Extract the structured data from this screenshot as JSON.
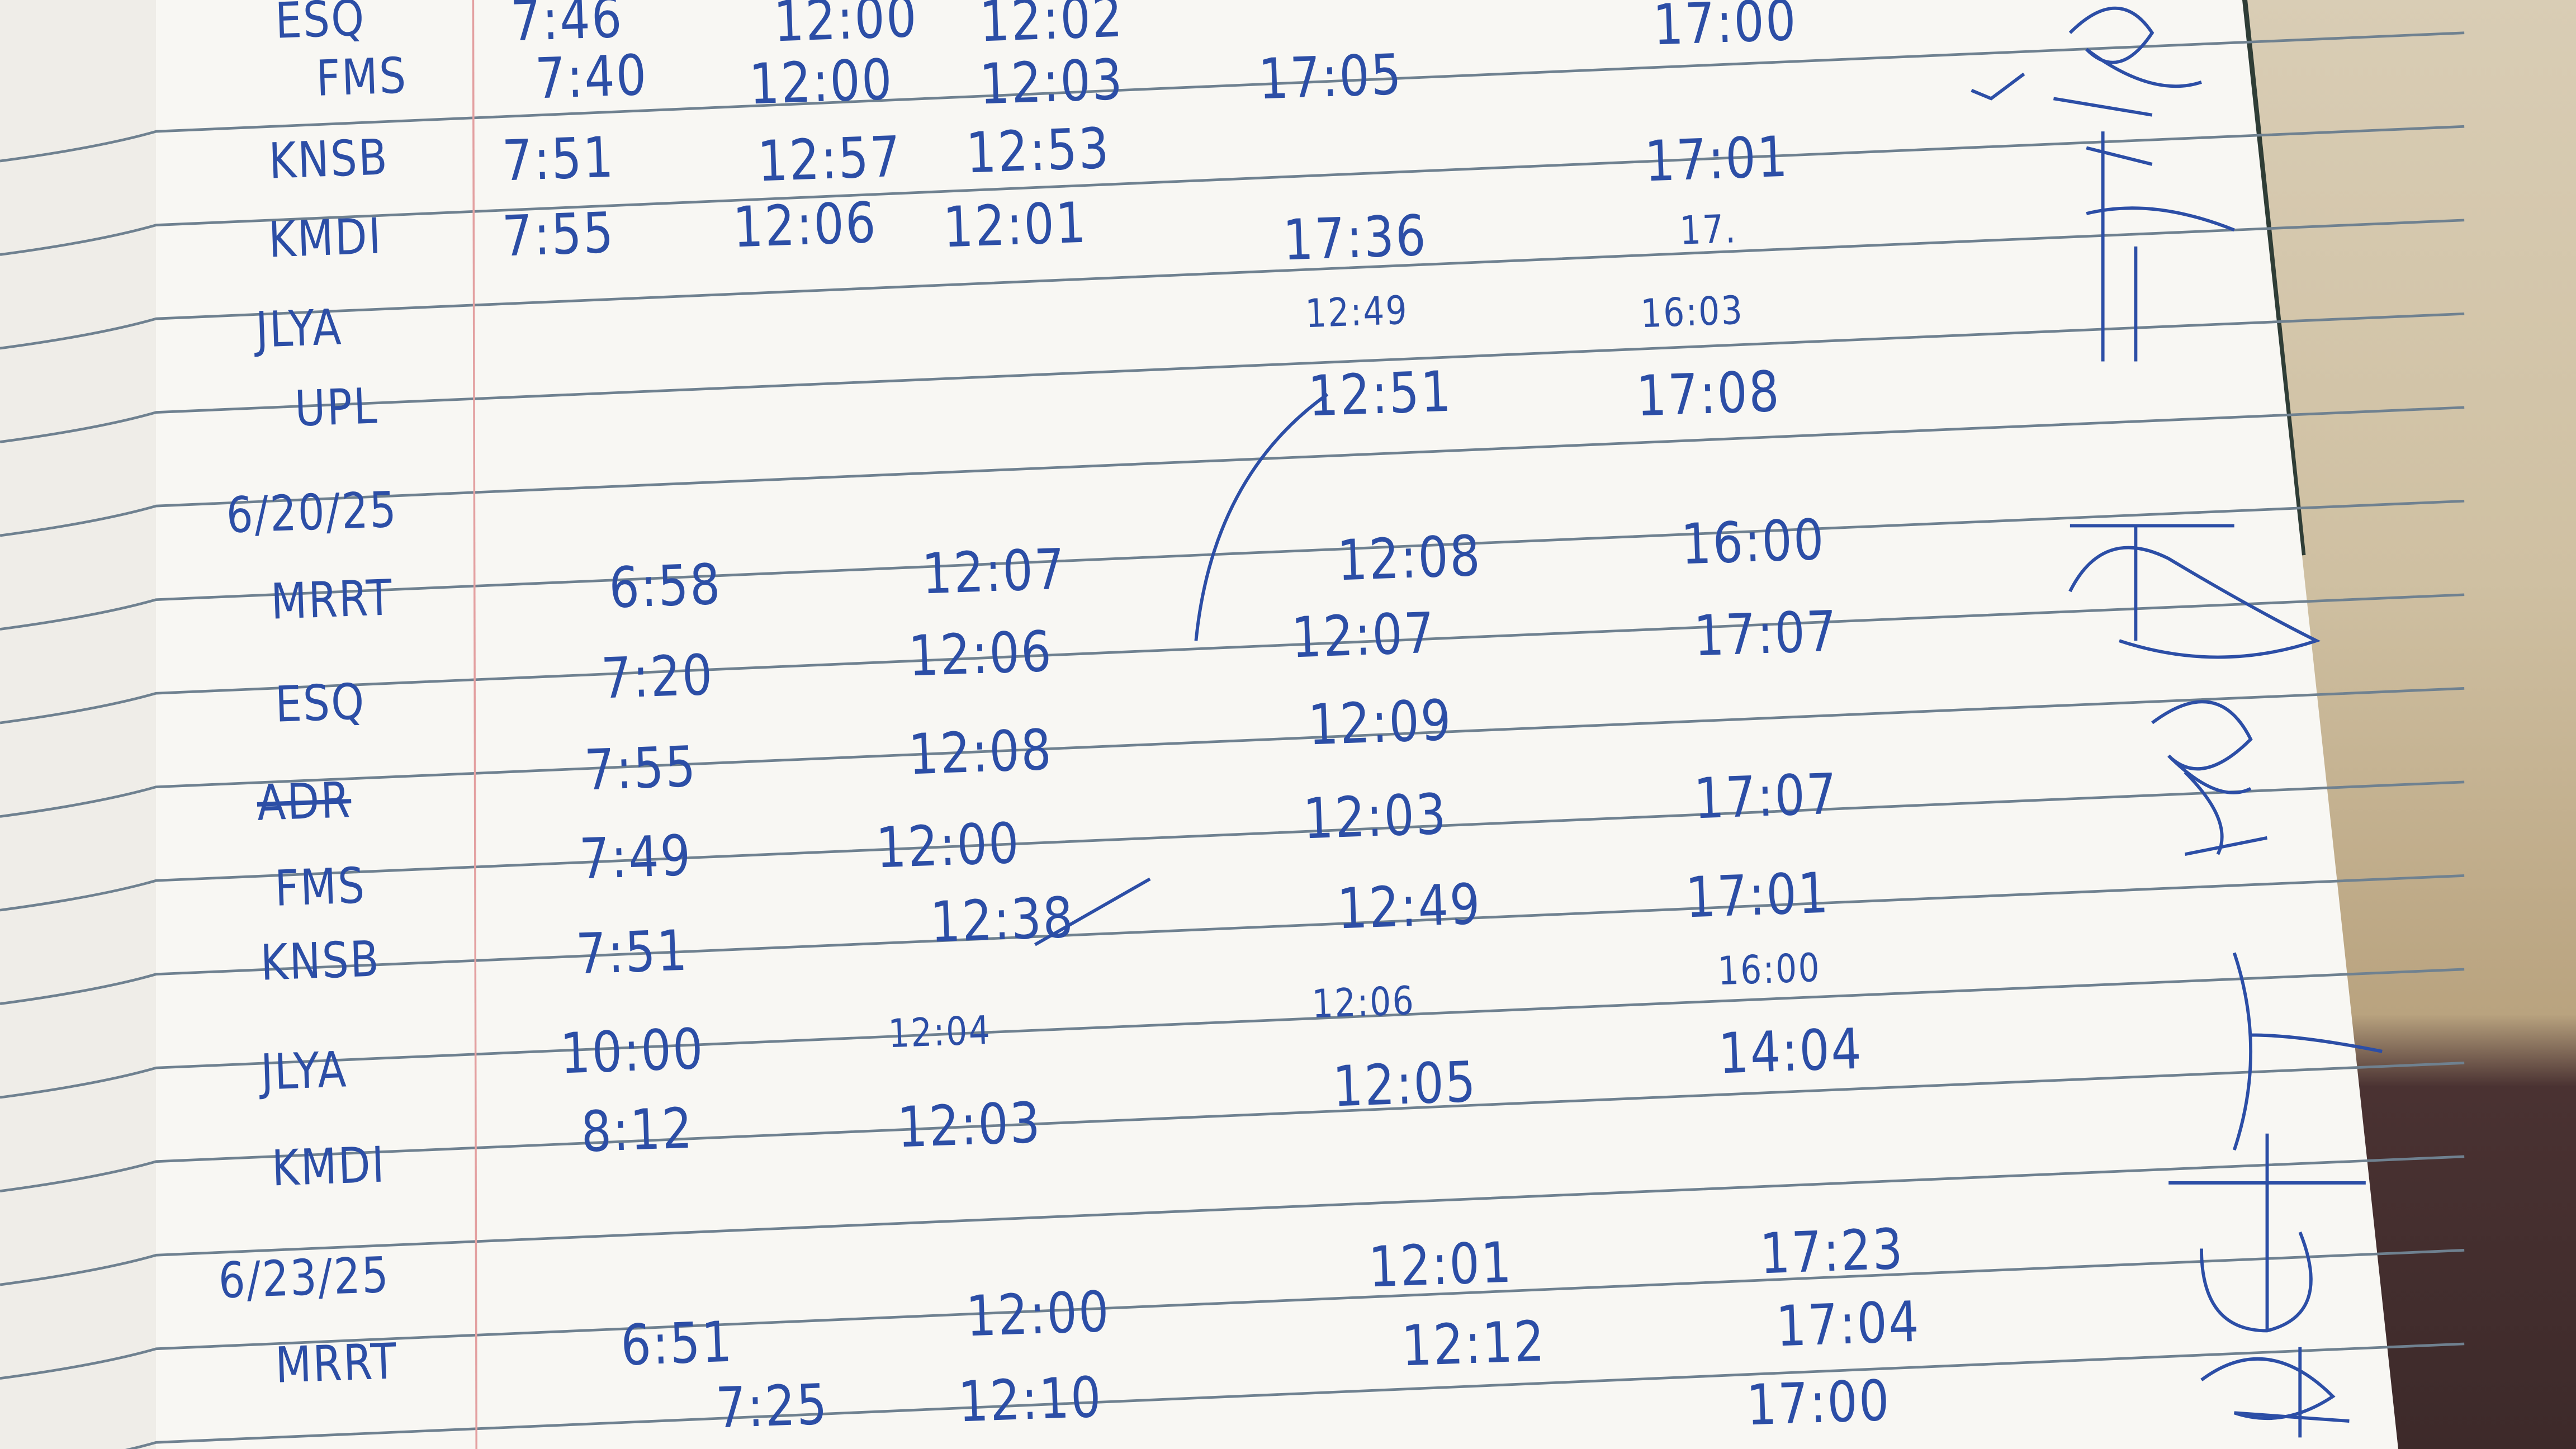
{
  "ink_color": "#2c4ea6",
  "rows": [
    {
      "label": "ESQ",
      "times": [
        "7:46",
        "12:00",
        "12:02",
        "17:00"
      ]
    },
    {
      "label": "FMS",
      "times": [
        "7:40",
        "12:00",
        "12:03",
        "17:05"
      ]
    },
    {
      "label": "KNSB",
      "times": [
        "7:51",
        "12:57",
        "12:53",
        "17:01"
      ]
    },
    {
      "label": "KMDI",
      "times": [
        "7:55",
        "12:06",
        "12:01",
        "17:36",
        "17."
      ]
    },
    {
      "label": "JLYA",
      "times": [
        "12:49",
        "16:03"
      ]
    },
    {
      "label": "UPL",
      "times": [
        "12:51",
        "17:08"
      ]
    },
    {
      "label": "6/20/25",
      "times": []
    },
    {
      "label": "MRRT",
      "times": [
        "6:58",
        "12:07",
        "12:08",
        "16:00"
      ]
    },
    {
      "label": "ESQ",
      "times": [
        "7:20",
        "12:06",
        "12:07",
        "17:07"
      ]
    },
    {
      "label": "ADR",
      "times": [
        "7:55",
        "12:08",
        "12:09"
      ]
    },
    {
      "label": "FMS",
      "times": [
        "7:49",
        "12:00",
        "12:03",
        "17:07"
      ]
    },
    {
      "label": "KNSB",
      "times": [
        "7:51",
        "12:38",
        "12:49",
        "17:01"
      ]
    },
    {
      "label": "JLYA",
      "times": [
        "10:00",
        "12:04",
        "12:06",
        "16:00"
      ]
    },
    {
      "label": "KMDI",
      "times": [
        "8:12",
        "12:03",
        "12:05",
        "14:04"
      ]
    },
    {
      "label": "6/23/25",
      "times": [
        "12:01",
        "17:23"
      ]
    },
    {
      "label": "MRRT",
      "times": [
        "6:51",
        "12:00",
        "12:12",
        "17:04"
      ]
    },
    {
      "label": "",
      "times": [
        "7:25",
        "12:10",
        "17:00"
      ]
    }
  ]
}
